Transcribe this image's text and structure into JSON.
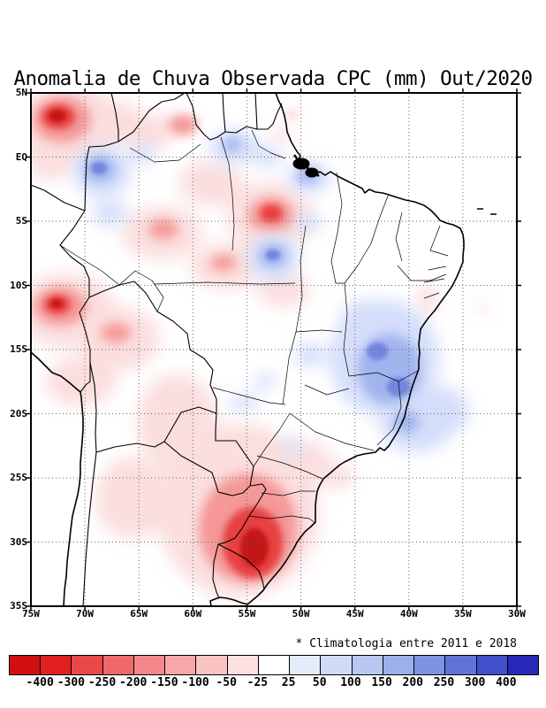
{
  "title": "Anomalia de Chuva Observada CPC (mm) Out/2020",
  "footnote": "* Climatologia entre 2011 e 2018",
  "map": {
    "region": "South America / Brazil",
    "lat_labels": [
      "5N",
      "EQ",
      "5S",
      "10S",
      "15S",
      "20S",
      "25S",
      "30S",
      "35S"
    ],
    "lon_labels": [
      "75W",
      "70W",
      "65W",
      "60W",
      "55W",
      "50W",
      "45W",
      "40W",
      "35W",
      "30W"
    ]
  },
  "colorbar": {
    "unit": "mm",
    "tick_labels": [
      "-400",
      "-300",
      "-250",
      "-200",
      "-150",
      "-100",
      "-50",
      "-25",
      "25",
      "50",
      "100",
      "150",
      "200",
      "250",
      "300",
      "400"
    ],
    "colors": [
      "#d01010",
      "#e02020",
      "#e84848",
      "#f06868",
      "#f48888",
      "#f8a8a8",
      "#fbc4c4",
      "#fde0e0",
      "#ffffff",
      "#e4ebfa",
      "#d0dcf6",
      "#b8c8f0",
      "#9cb0ea",
      "#7e94e2",
      "#6074d8",
      "#4050cc",
      "#2828b8"
    ],
    "negative_color_meaning": "rainfall deficit (red)",
    "positive_color_meaning": "rainfall excess (blue)"
  }
}
